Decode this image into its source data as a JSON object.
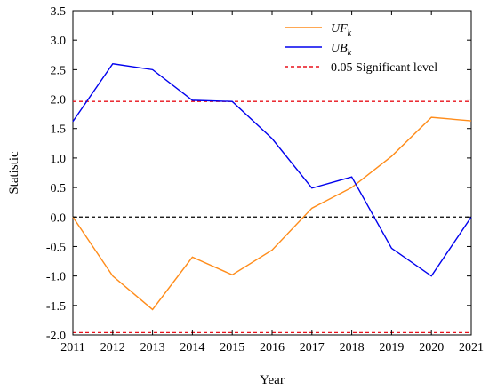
{
  "chart_data": {
    "type": "line",
    "xlabel": "Year",
    "ylabel": "Statistic",
    "x": [
      2011,
      2012,
      2013,
      2014,
      2015,
      2016,
      2017,
      2018,
      2019,
      2020,
      2021
    ],
    "xlim": [
      2011,
      2021
    ],
    "ylim": [
      -2.0,
      3.5
    ],
    "yticks": [
      "-2.0",
      "-1.5",
      "-1.0",
      "-0.5",
      "0.0",
      "0.5",
      "1.0",
      "1.5",
      "2.0",
      "2.5",
      "3.0",
      "3.5"
    ],
    "xticks": [
      "2011",
      "2012",
      "2013",
      "2014",
      "2015",
      "2016",
      "2017",
      "2018",
      "2019",
      "2020",
      "2021"
    ],
    "grid": false,
    "legend_position": "top-right",
    "series": [
      {
        "name": "UF",
        "subscript": "k",
        "color": "#ff8c1a",
        "style": "solid",
        "values": [
          0.0,
          -1.0,
          -1.57,
          -0.68,
          -0.98,
          -0.56,
          0.15,
          0.5,
          1.03,
          1.69,
          1.63
        ]
      },
      {
        "name": "UB",
        "subscript": "k",
        "color": "#0000ee",
        "style": "solid",
        "values": [
          1.62,
          2.6,
          2.5,
          1.98,
          1.96,
          1.33,
          0.49,
          0.68,
          -0.53,
          -1.0,
          0.0
        ]
      }
    ],
    "reference_lines": [
      {
        "name": "0.05 Significant level",
        "color": "#e8101a",
        "style": "dashed",
        "values": [
          1.96,
          -1.96
        ],
        "in_legend": true
      },
      {
        "name": "",
        "color": "#000000",
        "style": "dashed",
        "values": [
          0.0
        ],
        "in_legend": false
      }
    ]
  }
}
